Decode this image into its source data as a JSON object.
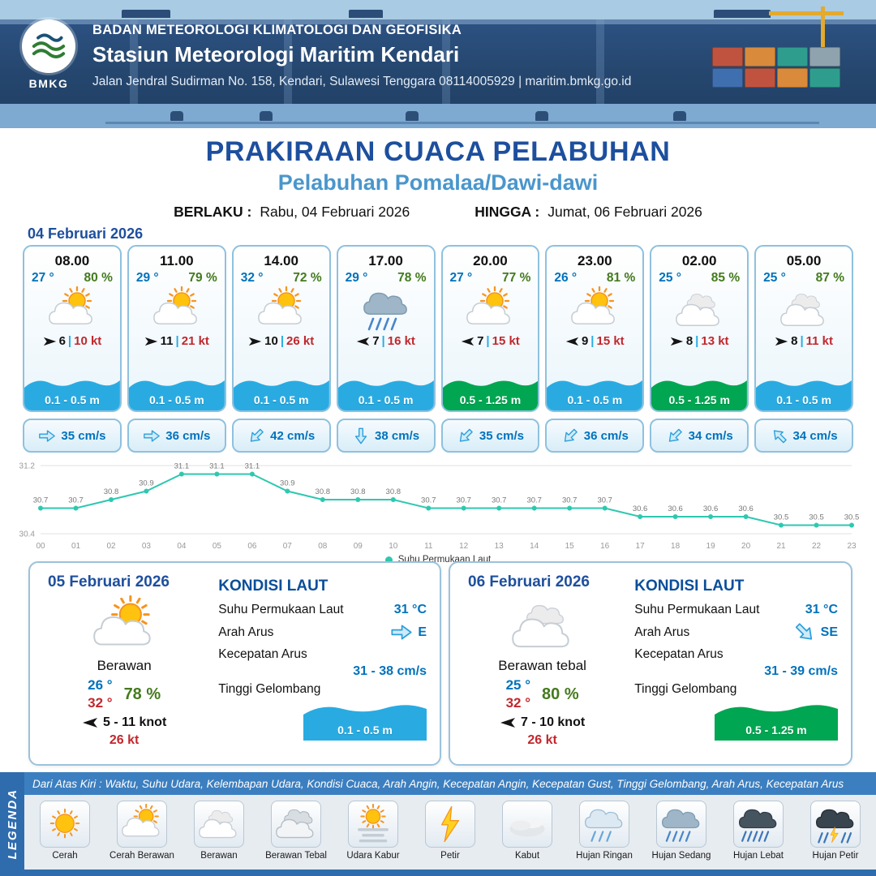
{
  "ui": {
    "pipe": "|"
  },
  "colors": {
    "temp-blue": "#0072bc",
    "rh-green": "#447a1d",
    "gust-red": "#c1272d",
    "wave-low": "#29abe2",
    "wave-mid": "#00a651",
    "accent": "#1d4f9e",
    "port": "#4a96cc",
    "teal": "#2ec8b0"
  },
  "header": {
    "logo_text": "BMKG",
    "org": "BADAN METEOROLOGI KLIMATOLOGI DAN GEOFISIKA",
    "station": "Stasiun Meteorologi Maritim Kendari",
    "address": "Jalan Jendral Sudirman No. 158, Kendari, Sulawesi Tenggara  08114005929 | maritim.bmkg.go.id"
  },
  "title": {
    "main": "PRAKIRAAN CUACA PELABUHAN",
    "port": "Pelabuhan Pomalaa/Dawi-dawi",
    "valid_from_label": "BERLAKU :",
    "valid_from": "Rabu, 04 Februari 2026",
    "valid_to_label": "HINGGA :",
    "valid_to": "Jumat, 06 Februari 2026"
  },
  "forecast": {
    "date": "04 Februari 2026",
    "cards": [
      {
        "time": "08.00",
        "temp": "27 °",
        "rh": "80 %",
        "icon": "cerah-berawan",
        "wind_dir": "E",
        "wind": "6",
        "gust": "10 kt",
        "wave": "0.1 - 0.5 m",
        "wave_level": "low",
        "current_dir": "E",
        "current": "35 cm/s"
      },
      {
        "time": "11.00",
        "temp": "29 °",
        "rh": "79 %",
        "icon": "cerah-berawan",
        "wind_dir": "E",
        "wind": "11",
        "gust": "21 kt",
        "wave": "0.1 - 0.5 m",
        "wave_level": "low",
        "current_dir": "E",
        "current": "36 cm/s"
      },
      {
        "time": "14.00",
        "temp": "32 °",
        "rh": "72 %",
        "icon": "cerah-berawan",
        "wind_dir": "E",
        "wind": "10",
        "gust": "26 kt",
        "wave": "0.1 - 0.5 m",
        "wave_level": "low",
        "current_dir": "SW",
        "current": "42 cm/s"
      },
      {
        "time": "17.00",
        "temp": "29 °",
        "rh": "78 %",
        "icon": "hujan-sedang",
        "wind_dir": "W",
        "wind": "7",
        "gust": "16 kt",
        "wave": "0.1 - 0.5 m",
        "wave_level": "low",
        "current_dir": "S",
        "current": "38 cm/s"
      },
      {
        "time": "20.00",
        "temp": "27 °",
        "rh": "77 %",
        "icon": "cerah-berawan",
        "wind_dir": "W",
        "wind": "7",
        "gust": "15 kt",
        "wave": "0.5 - 1.25 m",
        "wave_level": "mid",
        "current_dir": "SW",
        "current": "35 cm/s"
      },
      {
        "time": "23.00",
        "temp": "26 °",
        "rh": "81 %",
        "icon": "cerah-berawan",
        "wind_dir": "W",
        "wind": "9",
        "gust": "15 kt",
        "wave": "0.1 - 0.5 m",
        "wave_level": "low",
        "current_dir": "SW",
        "current": "36 cm/s"
      },
      {
        "time": "02.00",
        "temp": "25 °",
        "rh": "85 %",
        "icon": "berawan",
        "wind_dir": "E",
        "wind": "8",
        "gust": "13 kt",
        "wave": "0.5 - 1.25 m",
        "wave_level": "mid",
        "current_dir": "SW",
        "current": "34 cm/s"
      },
      {
        "time": "05.00",
        "temp": "25 °",
        "rh": "87 %",
        "icon": "berawan",
        "wind_dir": "E",
        "wind": "8",
        "gust": "11 kt",
        "wave": "0.1 - 0.5 m",
        "wave_level": "low",
        "current_dir": "NW",
        "current": "34 cm/s"
      }
    ]
  },
  "chart_data": {
    "type": "line",
    "title": "",
    "x": [
      "00",
      "01",
      "02",
      "03",
      "04",
      "05",
      "06",
      "07",
      "08",
      "09",
      "10",
      "11",
      "12",
      "13",
      "14",
      "15",
      "16",
      "17",
      "18",
      "19",
      "20",
      "21",
      "22",
      "23"
    ],
    "values": [
      30.7,
      30.7,
      30.8,
      30.9,
      31.1,
      31.1,
      31.1,
      30.9,
      30.8,
      30.8,
      30.8,
      30.7,
      30.7,
      30.7,
      30.7,
      30.7,
      30.7,
      30.6,
      30.6,
      30.6,
      30.6,
      30.5,
      30.5,
      30.5
    ],
    "ylim": [
      30.4,
      31.2
    ],
    "yticks": [
      30.4,
      31.2
    ],
    "xlabel": "",
    "ylabel": "",
    "grid": false,
    "legend": "Suhu Permukaan Laut",
    "legend_position": "bottom",
    "line_color": "#2ec8b0"
  },
  "day_cards": [
    {
      "date": "05 Februari 2026",
      "icon": "cerah-berawan",
      "condition": "Berawan",
      "temp_min": "26 °",
      "temp_max": "32 °",
      "rh": "78 %",
      "wind_dir": "W",
      "wind": "5 - 11 knot",
      "gust": "26 kt",
      "sea_title": "KONDISI LAUT",
      "sst_label": "Suhu Permukaan Laut",
      "sst": "31 °C",
      "current_dir_label": "Arah Arus",
      "current_dir": "E",
      "current_speed_label": "Kecepatan Arus",
      "current_speed": "31 - 38 cm/s",
      "wave_label": "Tinggi Gelombang",
      "wave": "0.1 - 0.5 m",
      "wave_level": "low"
    },
    {
      "date": "06 Februari 2026",
      "icon": "berawan",
      "condition": "Berawan tebal",
      "temp_min": "25 °",
      "temp_max": "32 °",
      "rh": "80 %",
      "wind_dir": "W",
      "wind": "7 - 10 knot",
      "gust": "26 kt",
      "sea_title": "KONDISI LAUT",
      "sst_label": "Suhu Permukaan Laut",
      "sst": "31 °C",
      "current_dir_label": "Arah Arus",
      "current_dir": "SE",
      "current_speed_label": "Kecepatan Arus",
      "current_speed": "31 - 39 cm/s",
      "wave_label": "Tinggi Gelombang",
      "wave": "0.5 - 1.25 m",
      "wave_level": "mid"
    }
  ],
  "legend": {
    "title": "LEGENDA",
    "description": "Dari Atas Kiri : Waktu, Suhu Udara, Kelembapan Udara, Kondisi Cuaca, Arah Angin, Kecepatan Angin, Kecepatan Gust, Tinggi Gelombang, Arah Arus, Kecepatan Arus",
    "items": [
      {
        "label": "Cerah",
        "icon": "cerah"
      },
      {
        "label": "Cerah Berawan",
        "icon": "cerah-berawan"
      },
      {
        "label": "Berawan",
        "icon": "berawan"
      },
      {
        "label": "Berawan Tebal",
        "icon": "berawan-tebal"
      },
      {
        "label": "Udara Kabur",
        "icon": "udara-kabur"
      },
      {
        "label": "Petir",
        "icon": "petir"
      },
      {
        "label": "Kabut",
        "icon": "kabut"
      },
      {
        "label": "Hujan Ringan",
        "icon": "hujan-ringan"
      },
      {
        "label": "Hujan Sedang",
        "icon": "hujan-sedang"
      },
      {
        "label": "Hujan Lebat",
        "icon": "hujan-lebat"
      },
      {
        "label": "Hujan Petir",
        "icon": "hujan-petir"
      }
    ]
  }
}
